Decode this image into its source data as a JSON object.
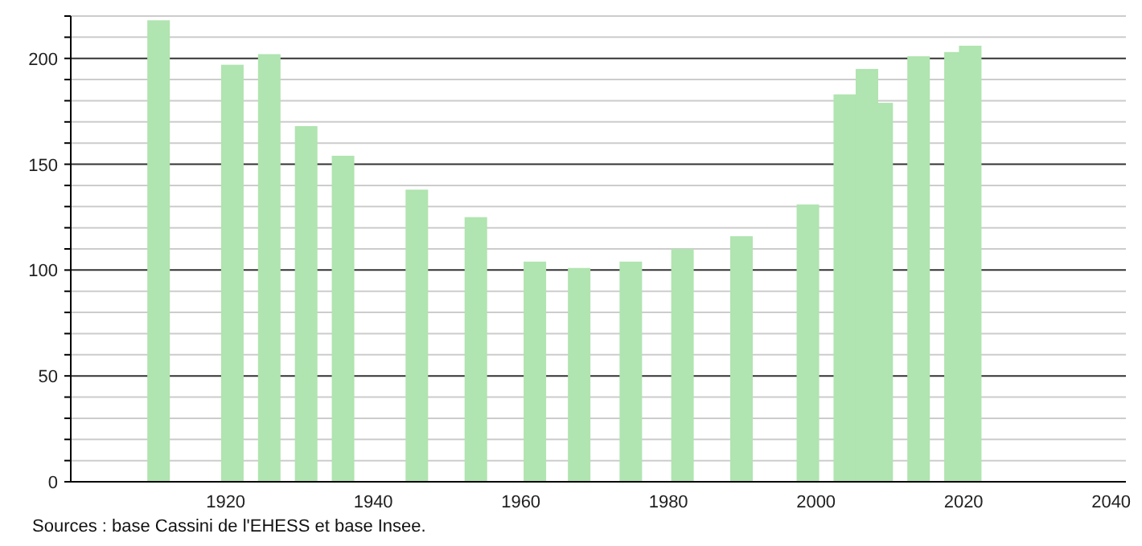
{
  "chart_data": {
    "type": "bar",
    "x": [
      1911,
      1921,
      1926,
      1931,
      1936,
      1946,
      1954,
      1962,
      1968,
      1975,
      1982,
      1990,
      1999,
      2004,
      2007,
      2009,
      2014,
      2019,
      2021
    ],
    "values": [
      218,
      197,
      202,
      168,
      154,
      138,
      125,
      104,
      101,
      104,
      110,
      116,
      131,
      183,
      195,
      179,
      201,
      203,
      206
    ],
    "color": "#b0e4b0",
    "xlim": [
      1899,
      2042
    ],
    "xticks": [
      1920,
      1940,
      1960,
      1980,
      2000,
      2020,
      2040
    ],
    "ylim": [
      0,
      220
    ],
    "yticks": [
      0,
      {
        "value": 10,
        "label": null
      },
      {
        "value": 20,
        "label": null
      },
      {
        "value": 30,
        "label": null
      },
      {
        "value": 40,
        "label": null
      },
      50,
      {
        "value": 60,
        "label": null
      },
      {
        "value": 70,
        "label": null
      },
      {
        "value": 80,
        "label": null
      },
      {
        "value": 90,
        "label": null
      },
      100,
      {
        "value": 110,
        "label": null
      },
      {
        "value": 120,
        "label": null
      },
      {
        "value": 130,
        "label": null
      },
      {
        "value": 140,
        "label": null
      },
      150,
      {
        "value": 160,
        "label": null
      },
      {
        "value": 170,
        "label": null
      },
      {
        "value": 180,
        "label": null
      },
      {
        "value": 190,
        "label": null
      },
      200,
      {
        "value": 210,
        "label": null
      },
      {
        "value": 220,
        "label": null
      }
    ],
    "grid": "y",
    "annotations": [
      "Sources : base Cassini de l'EHESS et base Insee."
    ]
  }
}
